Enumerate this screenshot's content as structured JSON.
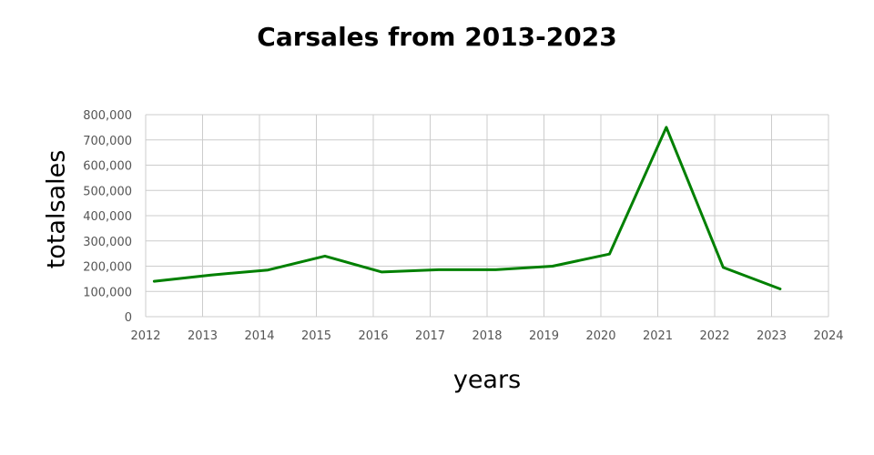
{
  "chart_data": {
    "type": "line",
    "title": "Carsales from 2013-2023",
    "xlabel": "years",
    "ylabel": "totalsales",
    "xlim": [
      2012,
      2024
    ],
    "ylim": [
      0,
      800000
    ],
    "x_ticks": [
      "2012",
      "2013",
      "2014",
      "2015",
      "2016",
      "2017",
      "2018",
      "2019",
      "2020",
      "2021",
      "2022",
      "2023",
      "2024"
    ],
    "y_ticks": [
      "0",
      "100,000",
      "200,000",
      "300,000",
      "400,000",
      "500,000",
      "600,000",
      "700,000",
      "800,000"
    ],
    "grid": true,
    "legend": "none",
    "series": [
      {
        "color": "#008000",
        "x": [
          2012.15,
          2013.15,
          2014.15,
          2015.15,
          2016.15,
          2017.15,
          2018.15,
          2019.15,
          2020.15,
          2021.15,
          2022.15,
          2023.15
        ],
        "values": [
          140000,
          165000,
          185000,
          240000,
          177000,
          186000,
          186000,
          200000,
          248000,
          750000,
          195000,
          110000
        ]
      }
    ]
  }
}
